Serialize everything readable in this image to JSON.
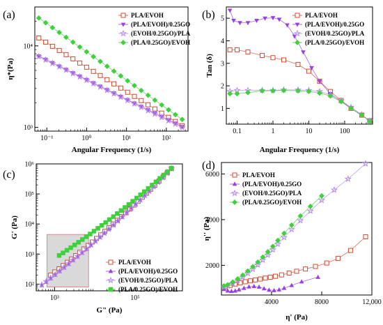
{
  "colors": {
    "pla_evoh": "#d9472b",
    "pla_evoh_go": "#9a3fe3",
    "evoh_go_pla": "#b58be6",
    "pla_go_evoh": "#3ed13c"
  },
  "chart_data": [
    {
      "panel_label": "(a)",
      "type": "scatter",
      "xlabel": "Angular Frequency (1/s)",
      "ylabel": "η*(Pa)",
      "x_scale": "log",
      "y_scale": "log",
      "xlim": [
        0.05,
        350
      ],
      "ylim": [
        900,
        30000
      ],
      "x_ticks": [
        {
          "v": 0.1,
          "label": "10⁻¹"
        },
        {
          "v": 1,
          "label": "10⁰"
        },
        {
          "v": 10,
          "label": "10¹"
        },
        {
          "v": 100,
          "label": "10²"
        }
      ],
      "y_ticks": [
        {
          "v": 1000,
          "label": "10³"
        },
        {
          "v": 10000,
          "label": "10⁴"
        }
      ],
      "legend_position": "top-right",
      "series": [
        {
          "name": "PLA/EVOH",
          "marker": "square-open",
          "color_key": "pla_evoh",
          "x_range": [
            0.063,
            250
          ],
          "y_start": 12500,
          "y_end": 1050,
          "mid_factor": 1
        },
        {
          "name": "(PLA/EVOH)/0.25GO",
          "marker": "tri-down-filled",
          "color_key": "pla_evoh_go",
          "x_range": [
            0.063,
            250
          ],
          "y_start": 7500,
          "y_end": 1020,
          "mid_factor": 1
        },
        {
          "name": "(EVOH/0.25GO)/PLA",
          "marker": "star-open",
          "color_key": "evoh_go_pla",
          "x_range": [
            0.063,
            250
          ],
          "y_start": 7400,
          "y_end": 1000,
          "mid_factor": 1
        },
        {
          "name": "(PLA/0.25GO)/EVOH",
          "marker": "diamond-filled",
          "color_key": "pla_go_evoh",
          "x_range": [
            0.063,
            250
          ],
          "y_start": 22000,
          "y_end": 1250,
          "mid_factor": 1
        }
      ]
    },
    {
      "panel_label": "(b)",
      "type": "scatter",
      "xlabel": "Angular Frequency (1/s)",
      "ylabel": "Tan (δ)",
      "x_scale": "log",
      "y_scale": "linear",
      "xlim": [
        0.05,
        600
      ],
      "ylim": [
        0.3,
        5.5
      ],
      "x_ticks": [
        {
          "v": 0.1,
          "label": "0.1"
        },
        {
          "v": 1,
          "label": "1"
        },
        {
          "v": 10,
          "label": "10"
        },
        {
          "v": 100,
          "label": "100"
        }
      ],
      "y_ticks": [
        {
          "v": 1,
          "label": "1"
        },
        {
          "v": 2,
          "label": "2"
        },
        {
          "v": 3,
          "label": "3"
        },
        {
          "v": 4,
          "label": "4"
        },
        {
          "v": 5,
          "label": "5"
        }
      ],
      "legend_position": "top-right",
      "series": [
        {
          "name": "PLA/EVOH",
          "marker": "square-open",
          "color_key": "pla_evoh",
          "points": [
            [
              0.063,
              3.6
            ],
            [
              0.1,
              3.6
            ],
            [
              0.2,
              3.5
            ],
            [
              0.5,
              3.35
            ],
            [
              1,
              3.25
            ],
            [
              2,
              3.15
            ],
            [
              5,
              2.95
            ],
            [
              10,
              2.65
            ],
            [
              20,
              2.2
            ],
            [
              40,
              1.75
            ],
            [
              80,
              1.35
            ],
            [
              150,
              1.0
            ],
            [
              300,
              0.7
            ],
            [
              500,
              0.45
            ]
          ]
        },
        {
          "name": "(PLA/EVOH)/0.25GO",
          "marker": "tri-down-filled",
          "color_key": "pla_evoh_go",
          "points": [
            [
              0.063,
              5.35
            ],
            [
              0.08,
              4.9
            ],
            [
              0.12,
              4.8
            ],
            [
              0.2,
              4.8
            ],
            [
              0.35,
              4.9
            ],
            [
              0.6,
              5.0
            ],
            [
              1,
              5.02
            ],
            [
              1.5,
              4.95
            ],
            [
              2.5,
              4.7
            ],
            [
              4,
              4.2
            ],
            [
              7,
              3.5
            ],
            [
              12,
              2.8
            ],
            [
              20,
              2.2
            ],
            [
              40,
              1.65
            ],
            [
              80,
              1.3
            ],
            [
              150,
              1.0
            ],
            [
              300,
              0.7
            ],
            [
              500,
              0.45
            ]
          ]
        },
        {
          "name": "(EVOH/0.25GO)/PLA",
          "marker": "star-open",
          "color_key": "evoh_go_pla",
          "points": [
            [
              0.063,
              1.75
            ],
            [
              0.1,
              1.8
            ],
            [
              0.2,
              1.8
            ],
            [
              0.5,
              1.8
            ],
            [
              1,
              1.8
            ],
            [
              2,
              1.82
            ],
            [
              5,
              1.82
            ],
            [
              10,
              1.8
            ],
            [
              20,
              1.75
            ],
            [
              40,
              1.6
            ],
            [
              80,
              1.35
            ],
            [
              150,
              1.05
            ],
            [
              300,
              0.72
            ],
            [
              500,
              0.45
            ]
          ]
        },
        {
          "name": "(PLA/0.25GO)/EVOH",
          "marker": "diamond-filled",
          "color_key": "pla_go_evoh",
          "points": [
            [
              0.063,
              1.65
            ],
            [
              0.1,
              1.65
            ],
            [
              0.2,
              1.7
            ],
            [
              0.5,
              1.78
            ],
            [
              1,
              1.78
            ],
            [
              2,
              1.8
            ],
            [
              5,
              1.78
            ],
            [
              10,
              1.75
            ],
            [
              20,
              1.68
            ],
            [
              40,
              1.55
            ],
            [
              80,
              1.3
            ],
            [
              150,
              1.0
            ],
            [
              300,
              0.7
            ],
            [
              500,
              0.42
            ]
          ]
        }
      ]
    },
    {
      "panel_label": "(c)",
      "type": "scatter",
      "xlabel": "G\" (Pa)",
      "ylabel": "G' (Pa)",
      "x_scale": "log",
      "y_scale": "log",
      "xlim": [
        350,
        1500000
      ],
      "ylim": [
        60,
        1000000
      ],
      "x_ticks": [
        {
          "v": 1000,
          "label": "10³"
        },
        {
          "v": 100000,
          "label": "10⁵"
        }
      ],
      "y_ticks": [
        {
          "v": 100,
          "label": "10²"
        },
        {
          "v": 1000,
          "label": "10³"
        },
        {
          "v": 10000,
          "label": "10⁴"
        },
        {
          "v": 100000,
          "label": "10⁵"
        },
        {
          "v": 1000000,
          "label": "10⁶"
        }
      ],
      "highlight_region": {
        "x": [
          650,
          7000
        ],
        "y": [
          80,
          4500
        ]
      },
      "legend_position": "bottom-right",
      "series": [
        {
          "name": "PLA/EVOH",
          "marker": "square-open",
          "color_key": "pla_evoh",
          "x_range": [
            800,
            800000
          ],
          "y_start": 200,
          "y_end": 700000
        },
        {
          "name": "(PLA/EVOH)/0.25GO",
          "marker": "tri-up-filled",
          "color_key": "pla_evoh_go",
          "x_range": [
            480,
            800000
          ],
          "y_start": 90,
          "y_end": 700000
        },
        {
          "name": "(EVOH/0.25GO)/PLA",
          "marker": "star-open",
          "color_key": "evoh_go_pla",
          "x_range": [
            480,
            800000
          ],
          "y_start": 95,
          "y_end": 700000
        },
        {
          "name": "(PLA/0.25GO)/EVOH",
          "marker": "square-filled",
          "color_key": "pla_go_evoh",
          "x_range": [
            1300,
            800000
          ],
          "y_start": 900,
          "y_end": 720000
        }
      ]
    },
    {
      "panel_label": "(d)",
      "type": "scatter",
      "xlabel": "η' (Pa)",
      "ylabel": "η'' (Pa)",
      "x_scale": "linear",
      "y_scale": "linear",
      "xlim": [
        0,
        12000
      ],
      "ylim": [
        700,
        6500
      ],
      "x_ticks": [
        {
          "v": 4000,
          "label": "4000"
        },
        {
          "v": 8000,
          "label": "8000"
        },
        {
          "v": 12000,
          "label": "12,000"
        }
      ],
      "y_ticks": [
        {
          "v": 2000,
          "label": "2000"
        },
        {
          "v": 4000,
          "label": "4000"
        },
        {
          "v": 6000,
          "label": "6000"
        }
      ],
      "legend_position": "top-left",
      "series": [
        {
          "name": "PLA/EVOH",
          "marker": "square-open",
          "color_key": "pla_evoh",
          "points": [
            [
              300,
              1050
            ],
            [
              700,
              1120
            ],
            [
              1100,
              1180
            ],
            [
              1500,
              1230
            ],
            [
              1900,
              1280
            ],
            [
              2300,
              1320
            ],
            [
              2700,
              1360
            ],
            [
              3100,
              1400
            ],
            [
              3500,
              1440
            ],
            [
              3900,
              1480
            ],
            [
              4300,
              1520
            ],
            [
              4800,
              1580
            ],
            [
              5400,
              1660
            ],
            [
              6000,
              1740
            ],
            [
              6700,
              1840
            ],
            [
              7500,
              1950
            ],
            [
              8400,
              2100
            ],
            [
              9300,
              2300
            ],
            [
              10300,
              2650
            ],
            [
              11500,
              3250
            ]
          ]
        },
        {
          "name": "(PLA/EVOH)/0.25GO",
          "marker": "tri-up-filled",
          "color_key": "pla_evoh_go",
          "points": [
            [
              200,
              950
            ],
            [
              500,
              880
            ],
            [
              800,
              860
            ],
            [
              1100,
              880
            ],
            [
              1400,
              930
            ],
            [
              1800,
              1000
            ],
            [
              2200,
              1060
            ],
            [
              2600,
              1080
            ],
            [
              3000,
              1050
            ],
            [
              3400,
              980
            ],
            [
              3800,
              920
            ],
            [
              4200,
              900
            ],
            [
              4600,
              930
            ],
            [
              5000,
              1000
            ],
            [
              5600,
              1120
            ],
            [
              6400,
              1280
            ],
            [
              7700,
              1480
            ]
          ]
        },
        {
          "name": "(EVOH/0.25GO)/PLA",
          "marker": "star-open",
          "color_key": "evoh_go_pla",
          "points": [
            [
              200,
              1050
            ],
            [
              500,
              1100
            ],
            [
              900,
              1200
            ],
            [
              1300,
              1330
            ],
            [
              1700,
              1480
            ],
            [
              2100,
              1650
            ],
            [
              2500,
              1830
            ],
            [
              2900,
              2020
            ],
            [
              3300,
              2230
            ],
            [
              3700,
              2450
            ],
            [
              4100,
              2680
            ],
            [
              4500,
              2930
            ],
            [
              5000,
              3220
            ],
            [
              5600,
              3570
            ],
            [
              6300,
              3960
            ],
            [
              7100,
              4380
            ],
            [
              8000,
              4850
            ],
            [
              9000,
              5300
            ],
            [
              10100,
              5780
            ],
            [
              11500,
              6450
            ]
          ]
        },
        {
          "name": "(PLA/0.25GO)/EVOH",
          "marker": "diamond-filled",
          "color_key": "pla_go_evoh",
          "points": [
            [
              200,
              1100
            ],
            [
              500,
              1150
            ],
            [
              900,
              1270
            ],
            [
              1300,
              1410
            ],
            [
              1700,
              1570
            ],
            [
              2100,
              1750
            ],
            [
              2500,
              1940
            ],
            [
              2900,
              2140
            ],
            [
              3300,
              2360
            ],
            [
              3700,
              2590
            ],
            [
              4100,
              2830
            ],
            [
              4500,
              3090
            ],
            [
              5000,
              3400
            ],
            [
              5600,
              3760
            ],
            [
              6300,
              4160
            ],
            [
              7100,
              4580
            ],
            [
              8000,
              5040
            ]
          ]
        }
      ]
    }
  ]
}
